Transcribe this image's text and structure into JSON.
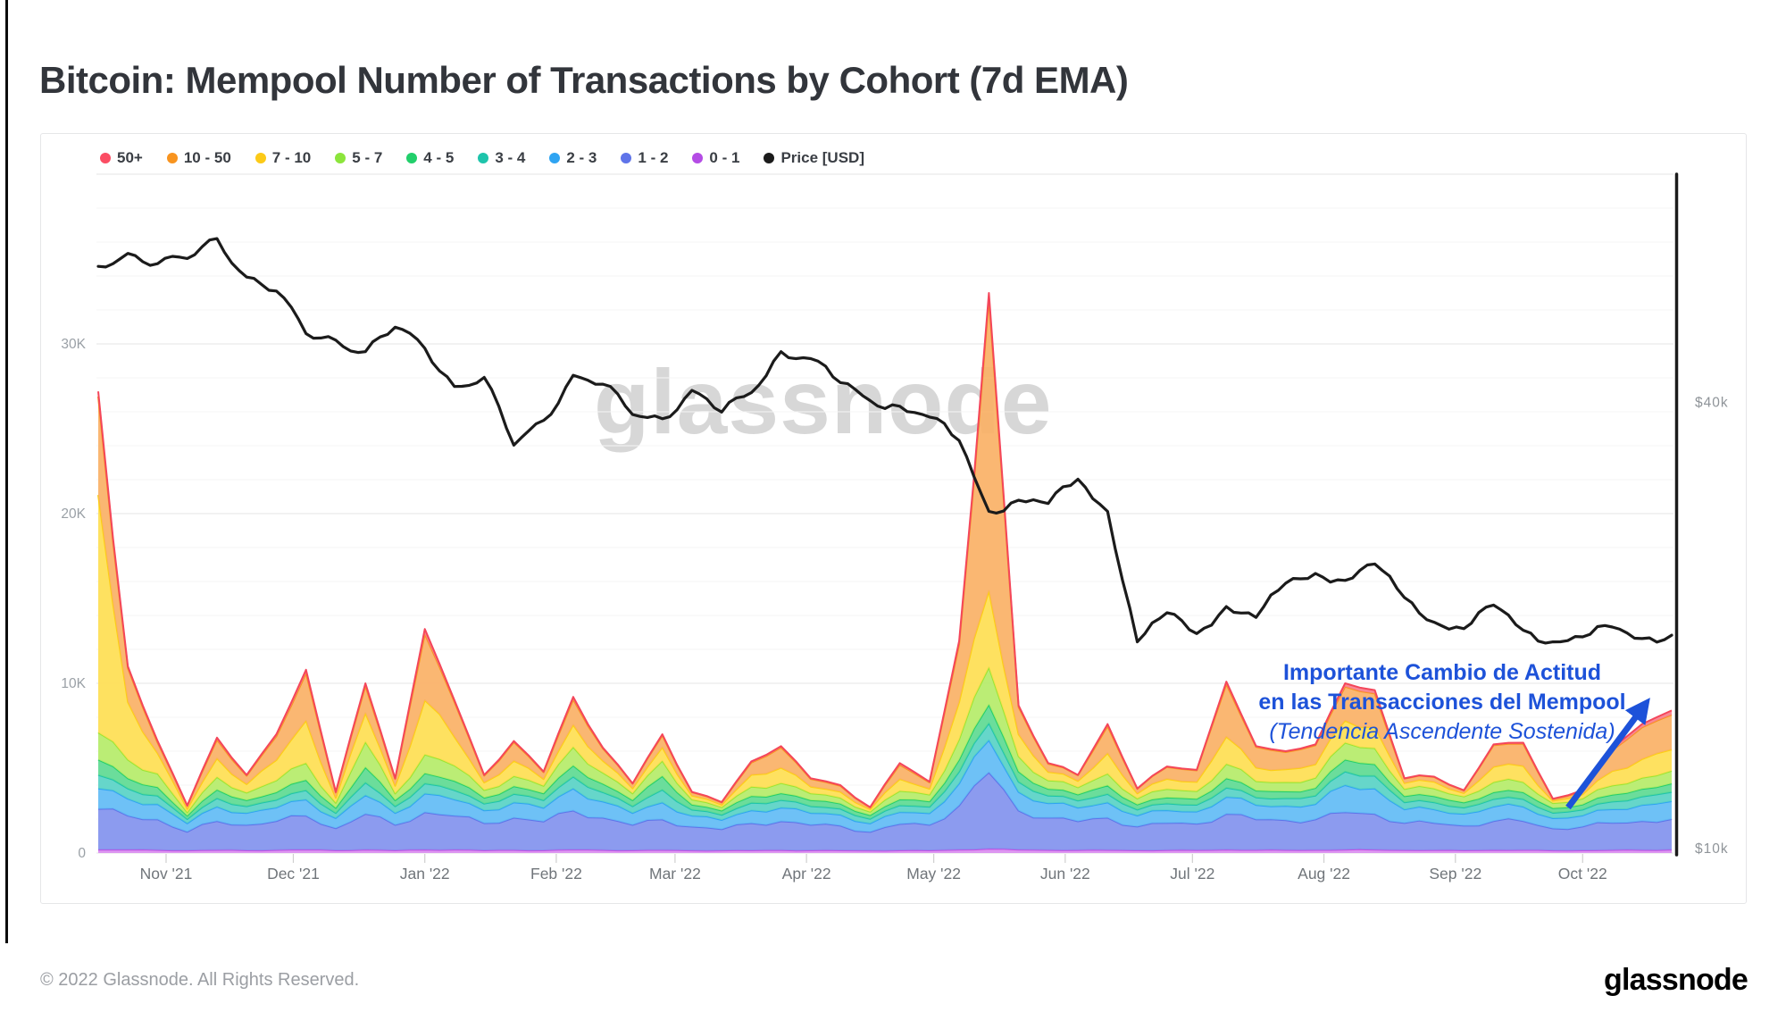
{
  "page": {
    "title": "Bitcoin: Mempool Number of Transactions by Cohort (7d EMA)",
    "watermark": "glassnode",
    "footer_copyright": "© 2022 Glassnode. All Rights Reserved.",
    "footer_logo": "glassnode"
  },
  "annotation": {
    "line1": "Importante Cambio de Actitud",
    "line2": "en las Transacciones del Mempool",
    "line3": "(Tendencia Ascendente Sostenida)",
    "color": "#1d52d9"
  },
  "legend": {
    "items": [
      {
        "label": "50+",
        "color": "#fb4d63"
      },
      {
        "label": "10 - 50",
        "color": "#f8941f"
      },
      {
        "label": "7 - 10",
        "color": "#fcca18"
      },
      {
        "label": "5 - 7",
        "color": "#8ce53c"
      },
      {
        "label": "4 - 5",
        "color": "#22cf6b"
      },
      {
        "label": "3 - 4",
        "color": "#1ec4ab"
      },
      {
        "label": "2 - 3",
        "color": "#2fa4f2"
      },
      {
        "label": "1 - 2",
        "color": "#5f74e9"
      },
      {
        "label": "0 - 1",
        "color": "#b44ce5"
      },
      {
        "label": "Price [USD]",
        "color": "#1b1b1b"
      }
    ]
  },
  "chart_data": {
    "type": "area",
    "stacked": true,
    "title": "Bitcoin: Mempool Number of Transactions by Cohort (7d EMA)",
    "x_range_note": "weekly samples, mid-Oct 2021 through late Oct 2022",
    "months": [
      {
        "label": "Nov '21",
        "day": 16
      },
      {
        "label": "Dec '21",
        "day": 46
      },
      {
        "label": "Jan '22",
        "day": 77
      },
      {
        "label": "Feb '22",
        "day": 108
      },
      {
        "label": "Mar '22",
        "day": 136
      },
      {
        "label": "Apr '22",
        "day": 167
      },
      {
        "label": "May '22",
        "day": 197
      },
      {
        "label": "Jun '22",
        "day": 228
      },
      {
        "label": "Jul '22",
        "day": 258
      },
      {
        "label": "Aug '22",
        "day": 289
      },
      {
        "label": "Sep '22",
        "day": 320
      },
      {
        "label": "Oct '22",
        "day": 350
      }
    ],
    "total_days": 371,
    "y_axis": {
      "unit": "K transactions",
      "max": 40,
      "gridline_step_minor": 2,
      "ticks": [
        {
          "label": "0",
          "value": 0
        },
        {
          "label": "10K",
          "value": 10
        },
        {
          "label": "20K",
          "value": 20
        },
        {
          "label": "30K",
          "value": 30
        }
      ]
    },
    "price_axis": {
      "scale": "log",
      "unit": "USD",
      "ticks": [
        {
          "label": "$10k",
          "value": 10
        },
        {
          "label": "$40k",
          "value": 40
        }
      ]
    },
    "series": [
      {
        "name": "0 - 1",
        "color": "#c44fe4",
        "fill": "#da8df0",
        "values": [
          0.2,
          0.2,
          0.18,
          0.15,
          0.18,
          0.16,
          0.18,
          0.2,
          0.16,
          0.2,
          0.16,
          0.2,
          0.2,
          0.16,
          0.18,
          0.16,
          0.2,
          0.18,
          0.16,
          0.18,
          0.15,
          0.15,
          0.16,
          0.17,
          0.16,
          0.16,
          0.14,
          0.16,
          0.16,
          0.2,
          0.25,
          0.2,
          0.18,
          0.17,
          0.18,
          0.16,
          0.17,
          0.17,
          0.2,
          0.18,
          0.18,
          0.18,
          0.2,
          0.2,
          0.17,
          0.17,
          0.16,
          0.18,
          0.18,
          0.15,
          0.16,
          0.18,
          0.18,
          0.2
        ]
      },
      {
        "name": "1 - 2",
        "color": "#5f74e9",
        "fill": "#8292ee",
        "values": [
          2.4,
          2.0,
          1.8,
          1.1,
          1.7,
          1.5,
          1.7,
          2.0,
          1.3,
          2.1,
          1.5,
          2.2,
          2.0,
          1.6,
          1.9,
          1.7,
          2.3,
          1.9,
          1.5,
          1.8,
          1.4,
          1.25,
          1.6,
          1.7,
          1.5,
          1.45,
          1.1,
          1.55,
          1.5,
          2.6,
          4.5,
          2.3,
          1.9,
          1.7,
          1.9,
          1.4,
          1.6,
          1.55,
          2.1,
          1.8,
          1.75,
          1.8,
          2.2,
          2.1,
          1.6,
          1.6,
          1.45,
          1.7,
          1.7,
          1.3,
          1.4,
          1.6,
          1.7,
          1.8
        ]
      },
      {
        "name": "2 - 3",
        "color": "#2fa4f2",
        "fill": "#62bcf5",
        "values": [
          1.2,
          1.0,
          0.9,
          0.5,
          0.85,
          0.7,
          0.8,
          0.95,
          0.6,
          1.1,
          0.7,
          1.1,
          0.95,
          0.75,
          0.9,
          0.8,
          1.3,
          0.95,
          0.7,
          1.0,
          0.65,
          0.55,
          0.75,
          0.8,
          0.7,
          0.65,
          0.5,
          0.7,
          0.68,
          1.3,
          1.9,
          1.1,
          0.85,
          0.8,
          0.9,
          0.65,
          0.75,
          0.72,
          1.0,
          0.85,
          0.85,
          0.9,
          1.6,
          1.5,
          0.8,
          0.8,
          0.7,
          0.85,
          0.85,
          0.6,
          0.65,
          0.8,
          0.95,
          1.05
        ]
      },
      {
        "name": "3 - 4",
        "color": "#1ec4ab",
        "fill": "#59d3c5",
        "values": [
          0.8,
          0.6,
          0.5,
          0.25,
          0.5,
          0.4,
          0.45,
          0.55,
          0.3,
          0.75,
          0.4,
          0.6,
          0.55,
          0.4,
          0.5,
          0.45,
          0.7,
          0.55,
          0.4,
          0.75,
          0.35,
          0.3,
          0.45,
          0.45,
          0.4,
          0.35,
          0.27,
          0.4,
          0.38,
          0.7,
          1.0,
          0.6,
          0.45,
          0.42,
          0.5,
          0.35,
          0.4,
          0.4,
          0.55,
          0.45,
          0.45,
          0.5,
          0.8,
          0.75,
          0.42,
          0.42,
          0.37,
          0.45,
          0.45,
          0.32,
          0.35,
          0.45,
          0.5,
          0.55
        ]
      },
      {
        "name": "4 - 5",
        "color": "#22cf6b",
        "fill": "#5eda92",
        "values": [
          0.9,
          0.6,
          0.5,
          0.2,
          0.5,
          0.35,
          0.45,
          0.6,
          0.3,
          0.9,
          0.35,
          0.6,
          0.55,
          0.35,
          0.45,
          0.4,
          0.65,
          0.5,
          0.35,
          0.8,
          0.3,
          0.25,
          0.4,
          0.4,
          0.35,
          0.3,
          0.22,
          0.35,
          0.32,
          0.7,
          1.1,
          0.6,
          0.4,
          0.36,
          0.5,
          0.3,
          0.35,
          0.35,
          0.55,
          0.4,
          0.4,
          0.45,
          0.7,
          0.68,
          0.36,
          0.36,
          0.3,
          0.4,
          0.4,
          0.27,
          0.3,
          0.4,
          0.45,
          0.5
        ]
      },
      {
        "name": "5 - 7",
        "color": "#9ae532",
        "fill": "#b5ec69",
        "values": [
          1.6,
          1.1,
          0.8,
          0.2,
          0.75,
          0.45,
          0.7,
          1.0,
          0.3,
          1.5,
          0.4,
          1.1,
          0.9,
          0.45,
          0.6,
          0.45,
          1.1,
          0.65,
          0.4,
          0.9,
          0.3,
          0.2,
          0.55,
          0.6,
          0.4,
          0.35,
          0.2,
          0.5,
          0.4,
          1.2,
          2.2,
          0.9,
          0.5,
          0.42,
          0.7,
          0.35,
          0.5,
          0.45,
          0.85,
          0.55,
          0.55,
          0.6,
          1.0,
          0.95,
          0.42,
          0.45,
          0.35,
          0.6,
          0.6,
          0.3,
          0.35,
          0.55,
          0.65,
          0.75
        ]
      },
      {
        "name": "7 - 10",
        "color": "#fdd011",
        "fill": "#fede53",
        "values": [
          14.0,
          3.4,
          1.2,
          0.2,
          1.1,
          0.5,
          1.2,
          2.5,
          0.3,
          1.7,
          0.45,
          3.2,
          1.7,
          0.45,
          0.9,
          0.4,
          1.3,
          0.7,
          0.3,
          0.8,
          0.23,
          0.15,
          0.7,
          0.9,
          0.4,
          0.35,
          0.15,
          0.7,
          0.35,
          2.2,
          4.5,
          1.3,
          0.5,
          0.38,
          1.2,
          0.3,
          0.6,
          0.55,
          1.6,
          0.8,
          0.75,
          0.8,
          1.3,
          1.25,
          0.35,
          0.4,
          0.2,
          0.9,
          0.95,
          0.14,
          0.25,
          0.85,
          1.1,
          1.25
        ]
      },
      {
        "name": "10 - 50",
        "color": "#f8941f",
        "fill": "#fab166",
        "values": [
          5.8,
          2.0,
          0.62,
          0.18,
          1.1,
          0.49,
          1.4,
          2.8,
          0.3,
          1.6,
          0.4,
          3.9,
          2.05,
          0.4,
          1.1,
          0.4,
          1.5,
          0.72,
          0.27,
          0.7,
          0.2,
          0.13,
          0.72,
          1.2,
          0.45,
          0.35,
          0.1,
          0.84,
          0.37,
          3.4,
          17.2,
          1.6,
          0.48,
          0.33,
          1.6,
          0.27,
          0.7,
          0.68,
          3.1,
          1.22,
          1.02,
          1.12,
          2.0,
          1.97,
          0.26,
          0.28,
          0.15,
          1.27,
          1.3,
          0.1,
          0.19,
          1.22,
          1.87,
          2.05
        ]
      },
      {
        "name": "50+",
        "color": "#f4465a",
        "fill": "#f9808d",
        "values": [
          0.3,
          0.1,
          0.1,
          0.02,
          0.12,
          0.05,
          0.12,
          0.2,
          0.04,
          0.15,
          0.04,
          0.3,
          0.1,
          0.04,
          0.07,
          0.04,
          0.15,
          0.05,
          0.02,
          0.07,
          0.02,
          0.02,
          0.07,
          0.08,
          0.04,
          0.04,
          0.02,
          0.1,
          0.04,
          0.2,
          0.35,
          0.1,
          0.04,
          0.02,
          0.12,
          0.02,
          0.03,
          0.03,
          0.15,
          0.05,
          0.05,
          0.05,
          0.2,
          0.2,
          0.02,
          0.02,
          0.02,
          0.05,
          0.07,
          0.02,
          0.06,
          0.15,
          0.2,
          0.25
        ]
      }
    ],
    "price_series": {
      "name": "Price [USD]",
      "color": "#1b1b1b",
      "unit": "kUSD",
      "values": [
        61.0,
        63.5,
        61.5,
        62.5,
        66.5,
        59.0,
        56.5,
        49.5,
        48.5,
        46.8,
        50.5,
        47.3,
        42.0,
        43.2,
        35.0,
        37.8,
        43.5,
        42.3,
        38.5,
        38.0,
        41.5,
        38.8,
        41.2,
        46.8,
        45.8,
        42.5,
        40.2,
        39.5,
        38.2,
        35.5,
        28.5,
        29.5,
        29.2,
        31.5,
        28.5,
        19.0,
        20.8,
        19.5,
        21.2,
        20.5,
        22.8,
        23.5,
        23.0,
        24.2,
        21.8,
        20.2,
        19.8,
        21.3,
        19.7,
        19.0,
        19.3,
        19.9,
        19.2,
        19.4
      ]
    }
  }
}
